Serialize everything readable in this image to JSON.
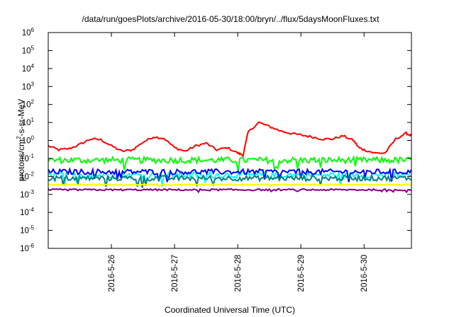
{
  "chart_data": {
    "type": "line",
    "title": "/data/run/goesPlots/archive/2016-05-30/18:00/bryn/../flux/5daysMoonFluxes.txt",
    "xlabel": "Coordinated Universal Time (UTC)",
    "ylabel_prefix": "protons/cm",
    "ylabel_sup": "2",
    "ylabel_suffix": "-s-sr-MeV",
    "y_scale": "log",
    "ylim": [
      1e-06,
      1000000.0
    ],
    "y_ticks": [
      {
        "exp": "-6",
        "value": 1e-06
      },
      {
        "exp": "-5",
        "value": 1e-05
      },
      {
        "exp": "-4",
        "value": 0.0001
      },
      {
        "exp": "-3",
        "value": 0.001
      },
      {
        "exp": "-2",
        "value": 0.01
      },
      {
        "exp": "-1",
        "value": 0.1
      },
      {
        "exp": "0",
        "value": 1
      },
      {
        "exp": "1",
        "value": 10
      },
      {
        "exp": "2",
        "value": 100
      },
      {
        "exp": "3",
        "value": 1000
      },
      {
        "exp": "4",
        "value": 10000
      },
      {
        "exp": "5",
        "value": 100000
      },
      {
        "exp": "6",
        "value": 1000000
      }
    ],
    "y_tick_base": "10",
    "xlim": [
      "2016-05-25 00:00",
      "2016-05-30 18:00"
    ],
    "x_ticks": [
      "2016-5-26",
      "2016-5-27",
      "2016-5-28",
      "2016-5-29",
      "2016-5-30"
    ],
    "grid": false,
    "legend": "none",
    "series": [
      {
        "color": "#ff0000",
        "x_hours": [
          0,
          4,
          8,
          12,
          16,
          20,
          24,
          28,
          32,
          36,
          40,
          44,
          48,
          52,
          56,
          60,
          64,
          68,
          72,
          74,
          76,
          80,
          84,
          88,
          92,
          96,
          100,
          104,
          108,
          112,
          116,
          118,
          120,
          124,
          128,
          132,
          136,
          138
        ],
        "values": [
          0.5,
          0.3,
          0.35,
          0.6,
          1.2,
          1.1,
          0.5,
          0.25,
          0.3,
          0.8,
          1.6,
          1.3,
          0.4,
          0.25,
          0.5,
          0.7,
          0.3,
          0.4,
          0.2,
          0.15,
          3.0,
          10.0,
          6.0,
          3.5,
          2.5,
          2.0,
          1.6,
          1.2,
          1.2,
          1.8,
          1.0,
          0.4,
          0.3,
          0.2,
          0.2,
          1.2,
          2.5,
          1.8
        ]
      },
      {
        "color": "#00ff00",
        "x_hours": [
          0,
          138
        ],
        "values": [
          0.08,
          0.08
        ],
        "noise": 0.35
      },
      {
        "color": "#00ffff",
        "x_hours": [
          0,
          138
        ],
        "values": [
          0.012,
          0.012
        ],
        "noise": 0.35
      },
      {
        "color": "#0000ff",
        "x_hours": [
          0,
          138
        ],
        "values": [
          0.018,
          0.018
        ],
        "noise": 0.3
      },
      {
        "color": "#008080",
        "x_hours": [
          0,
          138
        ],
        "values": [
          0.008,
          0.008
        ],
        "noise": 0.3
      },
      {
        "color": "#ffff00",
        "x_hours": [
          0,
          138
        ],
        "values": [
          0.0035,
          0.0035
        ],
        "noise": 0.05
      },
      {
        "color": "#800080",
        "x_hours": [
          0,
          138
        ],
        "values": [
          0.0018,
          0.0018
        ],
        "noise": 0.1
      }
    ]
  }
}
